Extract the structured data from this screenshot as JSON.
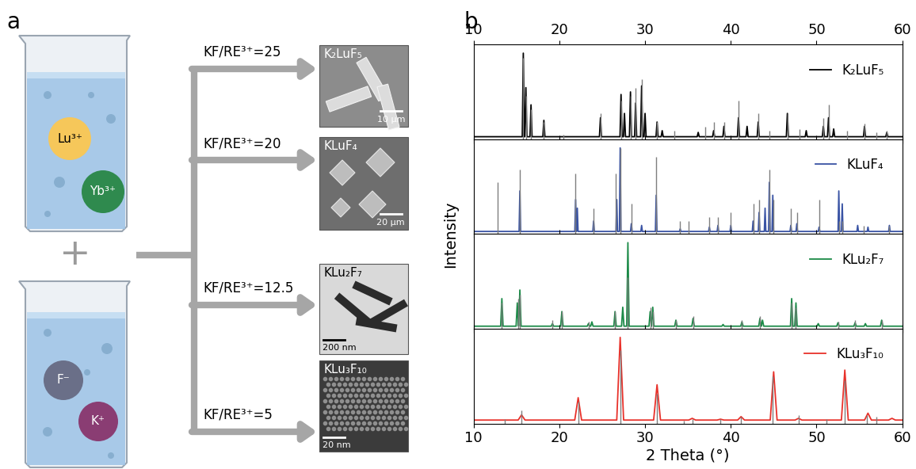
{
  "panel_a": {
    "label": "a",
    "beakers": [
      {
        "ions": [
          "Lu³⁺",
          "Yb³⁺"
        ]
      },
      {
        "ions": [
          "F⁻",
          "K⁺"
        ]
      }
    ],
    "operator": "+",
    "routes": [
      {
        "condition": "KF/RE³⁺=25",
        "product": "K₂LuF₅",
        "scale_bar": "10 μm"
      },
      {
        "condition": "KF/RE³⁺=20",
        "product": "KLuF₄",
        "scale_bar": "20 μm"
      },
      {
        "condition": "KF/RE³⁺=12.5",
        "product": "KLu₂F₇",
        "scale_bar": "200 nm"
      },
      {
        "condition": "KF/RE³⁺=5",
        "product": "KLu₃F₁₀",
        "scale_bar": "20 nm"
      }
    ]
  },
  "panel_b": {
    "label": "b",
    "ylabel": "Intensity"
  },
  "chart_data": [
    {
      "type": "line",
      "xlim": [
        10,
        60
      ],
      "xticks": [
        10,
        20,
        30,
        40,
        50,
        60
      ],
      "ylim": [
        0,
        1.1
      ],
      "yticks": [],
      "legend": "upper right",
      "tick_labels": "x",
      "series": [
        {
          "name": "K₂LuF₅",
          "color": "#000000",
          "x": [
            10,
            15.68,
            15.8,
            15.92,
            15.98,
            16.1,
            16.22,
            16.58,
            16.7,
            16.82,
            18.08,
            18.2,
            18.32,
            24.68,
            24.8,
            24.92,
            27.08,
            27.2,
            27.32,
            27.48,
            27.6,
            27.72,
            28.18,
            28.3,
            28.42,
            28.78,
            28.9,
            29.02,
            29.48,
            29.6,
            29.72,
            29.88,
            30.0,
            30.12,
            31.28,
            31.4,
            31.52,
            31.88,
            32.0,
            32.12,
            36.08,
            36.2,
            36.32,
            37.88,
            38.0,
            38.12,
            39.08,
            39.2,
            39.32,
            40.78,
            40.9,
            41.02,
            41.78,
            41.9,
            42.02,
            43.08,
            43.2,
            43.32,
            46.48,
            46.6,
            46.72,
            48.68,
            48.8,
            48.92,
            50.68,
            50.8,
            50.92,
            51.28,
            51.4,
            51.52,
            51.88,
            52.0,
            52.12,
            55.48,
            55.6,
            55.72,
            58.08,
            58.2,
            58.32,
            60
          ],
          "values": [
            0.03,
            0.03,
            1.0,
            0.03,
            0.03,
            0.6,
            0.03,
            0.03,
            0.4,
            0.03,
            0.03,
            0.22,
            0.03,
            0.03,
            0.25,
            0.03,
            0.03,
            0.52,
            0.03,
            0.03,
            0.3,
            0.03,
            0.03,
            0.55,
            0.03,
            0.03,
            0.42,
            0.03,
            0.03,
            0.62,
            0.03,
            0.03,
            0.3,
            0.03,
            0.03,
            0.2,
            0.03,
            0.03,
            0.1,
            0.03,
            0.03,
            0.08,
            0.03,
            0.03,
            0.1,
            0.03,
            0.03,
            0.15,
            0.03,
            0.03,
            0.25,
            0.03,
            0.03,
            0.15,
            0.03,
            0.03,
            0.2,
            0.03,
            0.03,
            0.3,
            0.03,
            0.03,
            0.1,
            0.03,
            0.03,
            0.15,
            0.03,
            0.03,
            0.25,
            0.03,
            0.03,
            0.12,
            0.03,
            0.03,
            0.15,
            0.03,
            0.03,
            0.08,
            0.03,
            0.03
          ]
        },
        {
          "type": "stem",
          "color": "#7f7f7f",
          "x": [
            15.8,
            16.1,
            16.7,
            18.2,
            20.5,
            24.8,
            27.2,
            28.3,
            28.9,
            29.6,
            31.4,
            33.4,
            37.0,
            38.0,
            39.2,
            40.9,
            43.2,
            44.5,
            46.6,
            48.0,
            50.8,
            51.4,
            53.6,
            55.6,
            57.0,
            58.2
          ],
          "values": [
            0.95,
            0.5,
            0.35,
            0.2,
            0.05,
            0.3,
            0.45,
            0.5,
            0.6,
            0.7,
            0.2,
            0.1,
            0.15,
            0.2,
            0.2,
            0.45,
            0.3,
            0.1,
            0.3,
            0.12,
            0.25,
            0.4,
            0.1,
            0.18,
            0.08,
            0.1
          ]
        }
      ]
    },
    {
      "type": "line",
      "xlim": [
        10,
        60
      ],
      "xticks": [
        10,
        20,
        30,
        40,
        50,
        60
      ],
      "ylim": [
        0,
        1.1
      ],
      "yticks": [],
      "legend": "upper right",
      "tick_labels": false,
      "series": [
        {
          "name": "KLuF₄",
          "color": "#3953a4",
          "x": [
            10,
            15.31,
            15.4,
            15.49,
            21.81,
            21.9,
            21.99,
            22.01,
            22.1,
            22.19,
            23.91,
            24.0,
            24.09,
            26.61,
            26.7,
            26.79,
            27.01,
            27.1,
            27.19,
            28.31,
            28.4,
            28.49,
            29.51,
            29.6,
            29.69,
            31.21,
            31.3,
            31.39,
            34.01,
            34.1,
            34.19,
            37.41,
            37.5,
            37.59,
            38.41,
            38.5,
            38.59,
            39.91,
            40.0,
            40.09,
            42.51,
            42.6,
            42.69,
            43.21,
            43.3,
            43.39,
            43.91,
            44.0,
            44.09,
            44.41,
            44.5,
            44.59,
            44.81,
            44.9,
            44.99,
            46.91,
            47.0,
            47.09,
            47.61,
            47.7,
            47.79,
            50.21,
            50.3,
            50.39,
            52.51,
            52.6,
            52.69,
            52.91,
            53.0,
            53.09,
            54.71,
            54.8,
            54.89,
            55.91,
            56.0,
            56.09,
            58.41,
            58.5,
            58.59,
            60
          ],
          "values": [
            0.03,
            0.03,
            0.5,
            0.03,
            0.03,
            0.4,
            0.03,
            0.03,
            0.3,
            0.03,
            0.03,
            0.15,
            0.03,
            0.03,
            0.4,
            0.03,
            0.03,
            1.0,
            0.03,
            0.03,
            0.12,
            0.03,
            0.03,
            0.1,
            0.03,
            0.03,
            0.45,
            0.03,
            0.03,
            0.06,
            0.03,
            0.03,
            0.08,
            0.03,
            0.03,
            0.1,
            0.03,
            0.03,
            0.1,
            0.03,
            0.03,
            0.15,
            0.03,
            0.03,
            0.25,
            0.03,
            0.03,
            0.3,
            0.03,
            0.03,
            0.6,
            0.03,
            0.03,
            0.45,
            0.03,
            0.03,
            0.1,
            0.03,
            0.03,
            0.12,
            0.03,
            0.03,
            0.08,
            0.03,
            0.03,
            0.5,
            0.03,
            0.03,
            0.35,
            0.03,
            0.03,
            0.1,
            0.03,
            0.03,
            0.08,
            0.03,
            0.03,
            0.1,
            0.03,
            0.03
          ]
        },
        {
          "type": "stem",
          "color": "#7f7f7f",
          "x": [
            12.8,
            15.4,
            21.9,
            24.0,
            26.6,
            27.1,
            28.4,
            31.3,
            34.1,
            35.1,
            37.5,
            38.5,
            40.0,
            42.7,
            43.3,
            44.5,
            45.0,
            47.0,
            47.7,
            50.3,
            52.6,
            53.0,
            55.5,
            58.5
          ],
          "values": [
            0.6,
            0.75,
            0.7,
            0.3,
            0.7,
            1.0,
            0.35,
            0.9,
            0.15,
            0.15,
            0.2,
            0.2,
            0.25,
            0.35,
            0.4,
            0.75,
            0.4,
            0.3,
            0.25,
            0.4,
            0.15,
            0.15,
            0.1,
            0.1
          ]
        }
      ]
    },
    {
      "type": "line",
      "xlim": [
        10,
        60
      ],
      "xticks": [
        10,
        20,
        30,
        40,
        50,
        60
      ],
      "ylim": [
        0,
        1.1
      ],
      "yticks": [],
      "legend": "upper right",
      "tick_labels": false,
      "series": [
        {
          "name": "KLu₂F₇",
          "color": "#1b8a47",
          "x": [
            10,
            13.16,
            13.3,
            13.44,
            14.96,
            15.1,
            15.24,
            15.26,
            15.4,
            15.54,
            19.06,
            19.2,
            19.34,
            20.16,
            20.3,
            20.44,
            23.26,
            23.4,
            23.54,
            23.66,
            23.8,
            23.94,
            26.36,
            26.5,
            26.64,
            27.26,
            27.4,
            27.54,
            27.86,
            28.0,
            28.14,
            30.46,
            30.6,
            30.74,
            30.76,
            30.9,
            31.04,
            33.46,
            33.6,
            33.74,
            35.46,
            35.6,
            35.74,
            38.96,
            39.1,
            39.24,
            41.16,
            41.3,
            41.44,
            43.26,
            43.4,
            43.54,
            43.56,
            43.7,
            43.84,
            46.96,
            47.1,
            47.24,
            47.46,
            47.6,
            47.74,
            50.06,
            50.2,
            50.34,
            52.36,
            52.5,
            52.64,
            54.36,
            54.5,
            54.64,
            55.56,
            55.7,
            55.84,
            57.46,
            57.6,
            57.74,
            60
          ],
          "values": [
            0.03,
            0.03,
            0.35,
            0.03,
            0.03,
            0.3,
            0.03,
            0.03,
            0.45,
            0.03,
            0.03,
            0.06,
            0.03,
            0.03,
            0.2,
            0.03,
            0.03,
            0.06,
            0.03,
            0.03,
            0.08,
            0.03,
            0.03,
            0.2,
            0.03,
            0.03,
            0.25,
            0.03,
            0.03,
            1.0,
            0.03,
            0.03,
            0.2,
            0.03,
            0.03,
            0.25,
            0.03,
            0.03,
            0.1,
            0.03,
            0.03,
            0.12,
            0.03,
            0.03,
            0.05,
            0.03,
            0.03,
            0.08,
            0.03,
            0.03,
            0.12,
            0.03,
            0.03,
            0.1,
            0.03,
            0.03,
            0.35,
            0.03,
            0.03,
            0.3,
            0.03,
            0.03,
            0.06,
            0.03,
            0.03,
            0.07,
            0.03,
            0.03,
            0.07,
            0.03,
            0.03,
            0.06,
            0.03,
            0.03,
            0.1,
            0.03,
            0.03
          ]
        },
        {
          "type": "stem",
          "color": "#7f7f7f",
          "x": [
            13.3,
            15.2,
            15.4,
            19.2,
            20.3,
            23.4,
            26.5,
            28.0,
            30.6,
            30.9,
            33.6,
            35.6,
            41.3,
            43.4,
            47.1,
            47.6,
            52.5,
            54.5,
            57.6
          ],
          "values": [
            0.3,
            0.35,
            0.4,
            0.1,
            0.2,
            0.08,
            0.2,
            0.6,
            0.25,
            0.2,
            0.1,
            0.15,
            0.1,
            0.15,
            0.3,
            0.25,
            0.08,
            0.1,
            0.1
          ]
        }
      ]
    },
    {
      "type": "line",
      "xlim": [
        10,
        60
      ],
      "xticks": [
        10,
        20,
        30,
        40,
        50,
        60
      ],
      "ylim": [
        0,
        1.1
      ],
      "yticks": [],
      "legend": "upper right",
      "tick_labels": "x",
      "xlabel": "2 Theta (°)",
      "series": [
        {
          "name": "KLu₃F₁₀",
          "color": "#e8312a",
          "x": [
            10,
            15.2,
            15.6,
            16.0,
            21.8,
            22.2,
            22.6,
            26.7,
            27.1,
            27.5,
            31.0,
            31.4,
            31.8,
            35.1,
            35.5,
            35.9,
            38.4,
            38.8,
            39.2,
            40.8,
            41.2,
            41.6,
            44.6,
            45.0,
            45.4,
            47.5,
            47.9,
            48.3,
            52.9,
            53.3,
            53.7,
            55.6,
            56.0,
            56.4,
            58.4,
            58.8,
            59.2,
            60
          ],
          "values": [
            0.04,
            0.04,
            0.1,
            0.04,
            0.04,
            0.3,
            0.04,
            0.04,
            1.0,
            0.04,
            0.04,
            0.45,
            0.04,
            0.04,
            0.06,
            0.04,
            0.04,
            0.05,
            0.04,
            0.04,
            0.08,
            0.04,
            0.04,
            0.6,
            0.04,
            0.04,
            0.06,
            0.04,
            0.04,
            0.62,
            0.04,
            0.04,
            0.12,
            0.04,
            0.04,
            0.06,
            0.04,
            0.04
          ]
        },
        {
          "type": "stem",
          "color": "#7f7f7f",
          "x": [
            13.6,
            15.6,
            22.2,
            27.1,
            31.4,
            34.5,
            35.5,
            38.8,
            41.2,
            44.9,
            47.9,
            51.2,
            53.3,
            55.9,
            57.0
          ],
          "values": [
            0.05,
            0.15,
            0.25,
            0.85,
            0.35,
            0.03,
            0.05,
            0.05,
            0.08,
            0.55,
            0.1,
            0.05,
            0.5,
            0.1,
            0.08
          ]
        }
      ]
    }
  ]
}
